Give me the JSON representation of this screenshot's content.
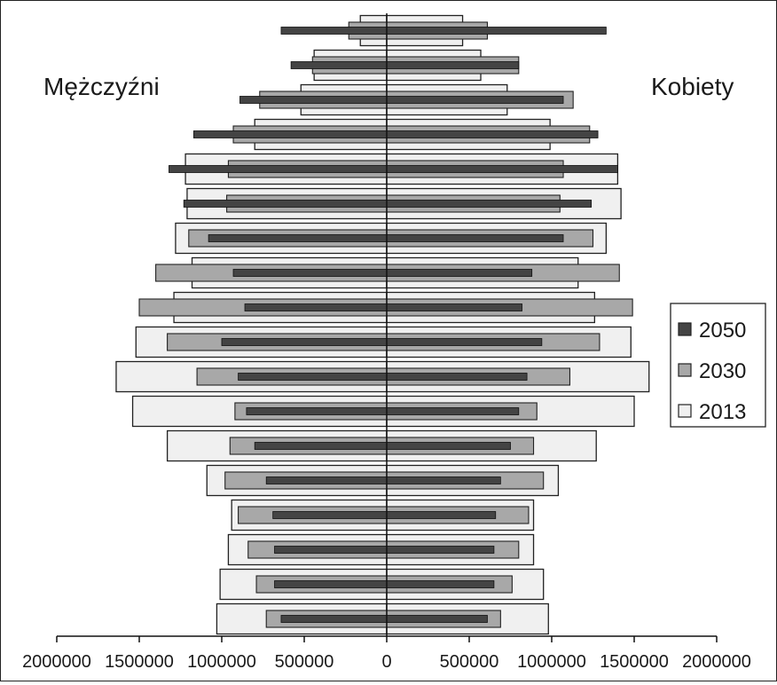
{
  "chart_data": {
    "type": "bar",
    "orientation": "horizontal-pyramid",
    "left_label": "Mężczyźni",
    "right_label": "Kobiety",
    "xlim": [
      -2000000,
      2000000
    ],
    "x_ticks": [
      {
        "value": -2000000,
        "label": "2000000"
      },
      {
        "value": -1500000,
        "label": "1500000"
      },
      {
        "value": -1000000,
        "label": "1000000"
      },
      {
        "value": -500000,
        "label": "500000"
      },
      {
        "value": 0,
        "label": "0"
      },
      {
        "value": 500000,
        "label": "500000"
      },
      {
        "value": 1000000,
        "label": "1000000"
      },
      {
        "value": 1500000,
        "label": "1500000"
      },
      {
        "value": 2000000,
        "label": "2000000"
      }
    ],
    "age_groups_count": 18,
    "legend_position": "right",
    "series": [
      {
        "name": "2013",
        "color": "#f0f0f0",
        "men": [
          1030000,
          1010000,
          960000,
          940000,
          1090000,
          1330000,
          1540000,
          1640000,
          1520000,
          1290000,
          1180000,
          1280000,
          1210000,
          1220000,
          800000,
          520000,
          440000,
          160000
        ],
        "women": [
          980000,
          950000,
          890000,
          890000,
          1040000,
          1270000,
          1500000,
          1590000,
          1480000,
          1260000,
          1160000,
          1330000,
          1420000,
          1400000,
          990000,
          730000,
          570000,
          460000
        ]
      },
      {
        "name": "2030",
        "color": "#a8a8a8",
        "men": [
          730000,
          790000,
          840000,
          900000,
          980000,
          950000,
          920000,
          1150000,
          1330000,
          1500000,
          1400000,
          1200000,
          970000,
          960000,
          930000,
          770000,
          450000,
          230000
        ],
        "women": [
          690000,
          760000,
          800000,
          860000,
          950000,
          890000,
          910000,
          1110000,
          1290000,
          1490000,
          1410000,
          1250000,
          1050000,
          1070000,
          1230000,
          1130000,
          800000,
          610000
        ]
      },
      {
        "name": "2050",
        "color": "#444444",
        "men": [
          640000,
          680000,
          680000,
          690000,
          730000,
          800000,
          850000,
          900000,
          1000000,
          860000,
          930000,
          1080000,
          1230000,
          1320000,
          1170000,
          890000,
          580000,
          640000
        ],
        "women": [
          610000,
          650000,
          650000,
          660000,
          690000,
          750000,
          800000,
          850000,
          940000,
          820000,
          880000,
          1070000,
          1240000,
          1400000,
          1280000,
          1070000,
          800000,
          1330000
        ]
      }
    ],
    "legend": [
      {
        "label": "2050",
        "color": "#444444"
      },
      {
        "label": "2030",
        "color": "#a8a8a8"
      },
      {
        "label": "2013",
        "color": "#f0f0f0"
      }
    ]
  }
}
